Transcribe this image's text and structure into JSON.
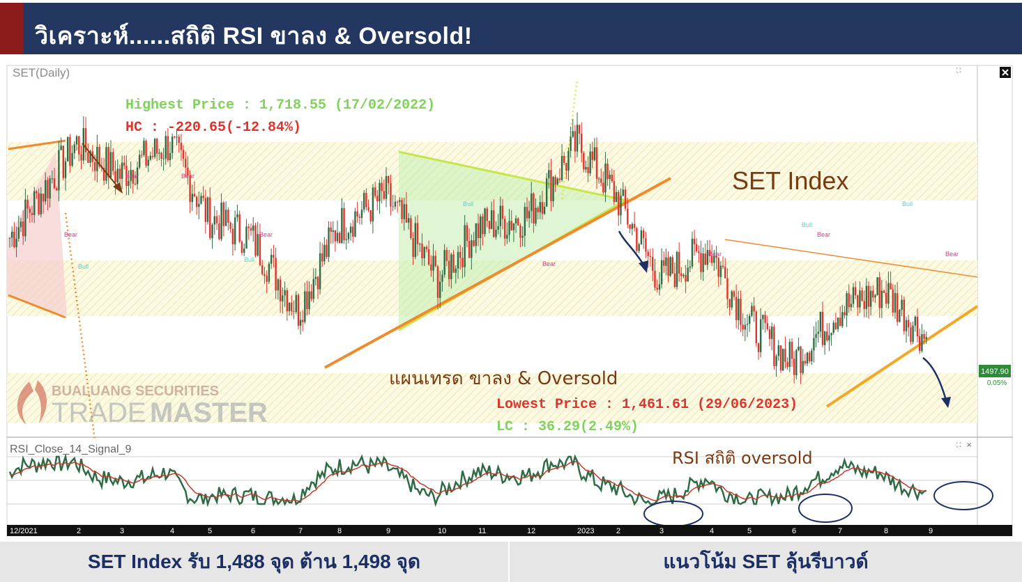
{
  "header": {
    "title": "วิเคราะห์......สถิติ RSI ขาลง & Oversold!"
  },
  "chart_data": [
    {
      "type": "candlestick",
      "panel": "price",
      "title": "SET(Daily)",
      "label_big": "SET Index",
      "annotations": {
        "highest": "Highest Price : 1,718.55 (17/02/2022)",
        "hc": "HC : -220.65(-12.84%)",
        "plan": "แผนเทรด ขาลง & Oversold",
        "lowest": "Lowest Price : 1,461.61 (29/06/2023)",
        "lc": "LC : 36.29(2.49%)"
      },
      "last_price": "1497.90",
      "last_change": "0.05%",
      "signals": [
        "Bear",
        "Bull"
      ],
      "x_ticks": [
        "12/2021",
        "2",
        "3",
        "4",
        "5",
        "6",
        "7",
        "8",
        "9",
        "10",
        "11",
        "12",
        "2023",
        "2",
        "3",
        "4",
        "5",
        "6",
        "7",
        "8",
        "9"
      ],
      "approx_close": [
        {
          "period": "12/2021",
          "value": 1600
        },
        {
          "period": "2",
          "value": 1690
        },
        {
          "period": "3",
          "value": 1660
        },
        {
          "period": "4",
          "value": 1690
        },
        {
          "period": "5",
          "value": 1620
        },
        {
          "period": "6",
          "value": 1600
        },
        {
          "period": "7",
          "value": 1530
        },
        {
          "period": "8",
          "value": 1610
        },
        {
          "period": "9",
          "value": 1640
        },
        {
          "period": "10",
          "value": 1560
        },
        {
          "period": "11",
          "value": 1610
        },
        {
          "period": "12",
          "value": 1620
        },
        {
          "period": "2023",
          "value": 1690
        },
        {
          "period": "2",
          "value": 1640
        },
        {
          "period": "3",
          "value": 1560
        },
        {
          "period": "4",
          "value": 1590
        },
        {
          "period": "5",
          "value": 1520
        },
        {
          "period": "6",
          "value": 1480
        },
        {
          "period": "7",
          "value": 1530
        },
        {
          "period": "8",
          "value": 1550
        },
        {
          "period": "9",
          "value": 1500
        }
      ]
    },
    {
      "type": "line",
      "panel": "indicator",
      "title": "RSI_Close_14_Signal_9",
      "label": "RSI สถิติ oversold",
      "series": [
        {
          "name": "RSI"
        },
        {
          "name": "Signal"
        }
      ]
    }
  ],
  "watermark": {
    "line1": "BUALUANG SECURITIES",
    "line2a": "TRADE",
    "line2b": "MASTER"
  },
  "footer": {
    "left": "SET Index รับ 1,488 จุด ต้าน 1,498 จุด",
    "right": "แนวโน้ม SET ลุ้นรีบาวด์"
  },
  "colors": {
    "navy": "#243760",
    "red_bar": "#8b1a1a",
    "up": "#2e6b45",
    "down": "#e0332b",
    "band": "#f3f0c4",
    "trend": "#ff8c2e"
  }
}
